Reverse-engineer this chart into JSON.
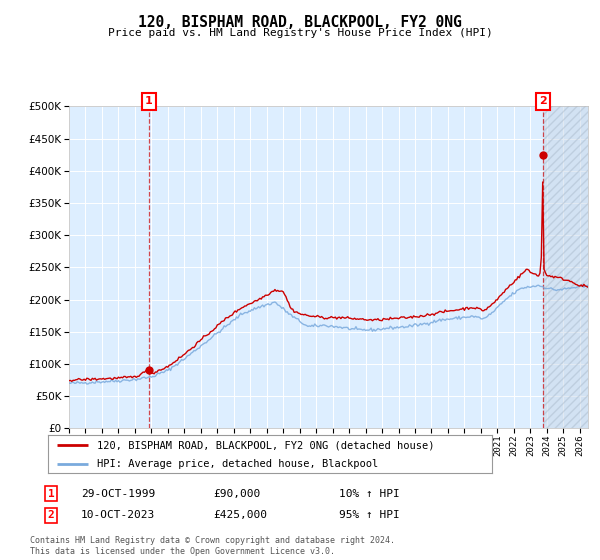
{
  "title": "120, BISPHAM ROAD, BLACKPOOL, FY2 0NG",
  "subtitle": "Price paid vs. HM Land Registry's House Price Index (HPI)",
  "legend_line1": "120, BISPHAM ROAD, BLACKPOOL, FY2 0NG (detached house)",
  "legend_line2": "HPI: Average price, detached house, Blackpool",
  "sale1_date": "29-OCT-1999",
  "sale1_price": 90000,
  "sale1_hpi": "10% ↑ HPI",
  "sale2_date": "10-OCT-2023",
  "sale2_price": 425000,
  "sale2_hpi": "95% ↑ HPI",
  "footer": "Contains HM Land Registry data © Crown copyright and database right 2024.\nThis data is licensed under the Open Government Licence v3.0.",
  "hpi_color": "#7aaadd",
  "price_color": "#cc0000",
  "bg_color": "#ddeeff",
  "grid_color": "#ffffff",
  "ylim": [
    0,
    500000
  ],
  "yticks": [
    0,
    50000,
    100000,
    150000,
    200000,
    250000,
    300000,
    350000,
    400000,
    450000,
    500000
  ],
  "sale1_x": 1999.83,
  "sale2_x": 2023.78,
  "xmin": 1995.0,
  "xmax": 2026.5
}
